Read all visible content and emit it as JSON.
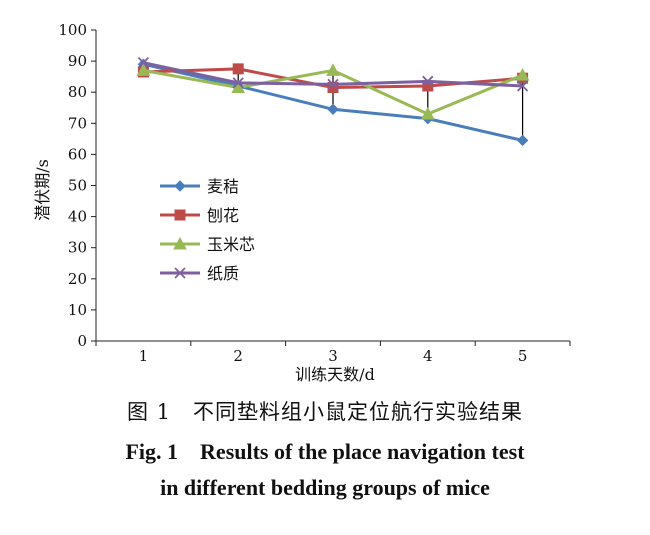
{
  "chart_data": {
    "type": "line",
    "xlabel": "训练天数/d",
    "ylabel": "潜伏期/s",
    "x": [
      1,
      2,
      3,
      4,
      5
    ],
    "ylim": [
      0,
      100
    ],
    "yticks": [
      0,
      10,
      20,
      30,
      40,
      50,
      60,
      70,
      80,
      90,
      100
    ],
    "grid": false,
    "legend_position": "left-middle",
    "series": [
      {
        "name": "麦秸",
        "values": [
          89,
          82,
          74.5,
          71.5,
          64.5
        ],
        "color": "#4a7ebb",
        "marker": "diamond"
      },
      {
        "name": "刨花",
        "values": [
          86.5,
          87.5,
          81.5,
          82,
          84.5
        ],
        "color": "#be4b48",
        "marker": "square"
      },
      {
        "name": "玉米芯",
        "values": [
          87,
          81.5,
          87,
          73,
          85.5
        ],
        "color": "#98b954",
        "marker": "triangle"
      },
      {
        "name": "纸质",
        "values": [
          89.5,
          83,
          82.5,
          83.5,
          82
        ],
        "color": "#7d60a0",
        "marker": "x"
      }
    ],
    "error_bars": [
      {
        "x": 1,
        "y_low": 86.5,
        "y_high": 89.5
      },
      {
        "x": 2,
        "y_low": 81.5,
        "y_high": 87.5
      },
      {
        "x": 3,
        "y_low": 74.5,
        "y_high": 87
      },
      {
        "x": 4,
        "y_low": 71.5,
        "y_high": 83.5
      },
      {
        "x": 5,
        "y_low": 64.5,
        "y_high": 85.5
      }
    ]
  },
  "caption": {
    "zh": "图 1　不同垫料组小鼠定位航行实验结果",
    "en_line1": "Fig. 1　Results of the place navigation test",
    "en_line2": "in different bedding groups of mice"
  }
}
